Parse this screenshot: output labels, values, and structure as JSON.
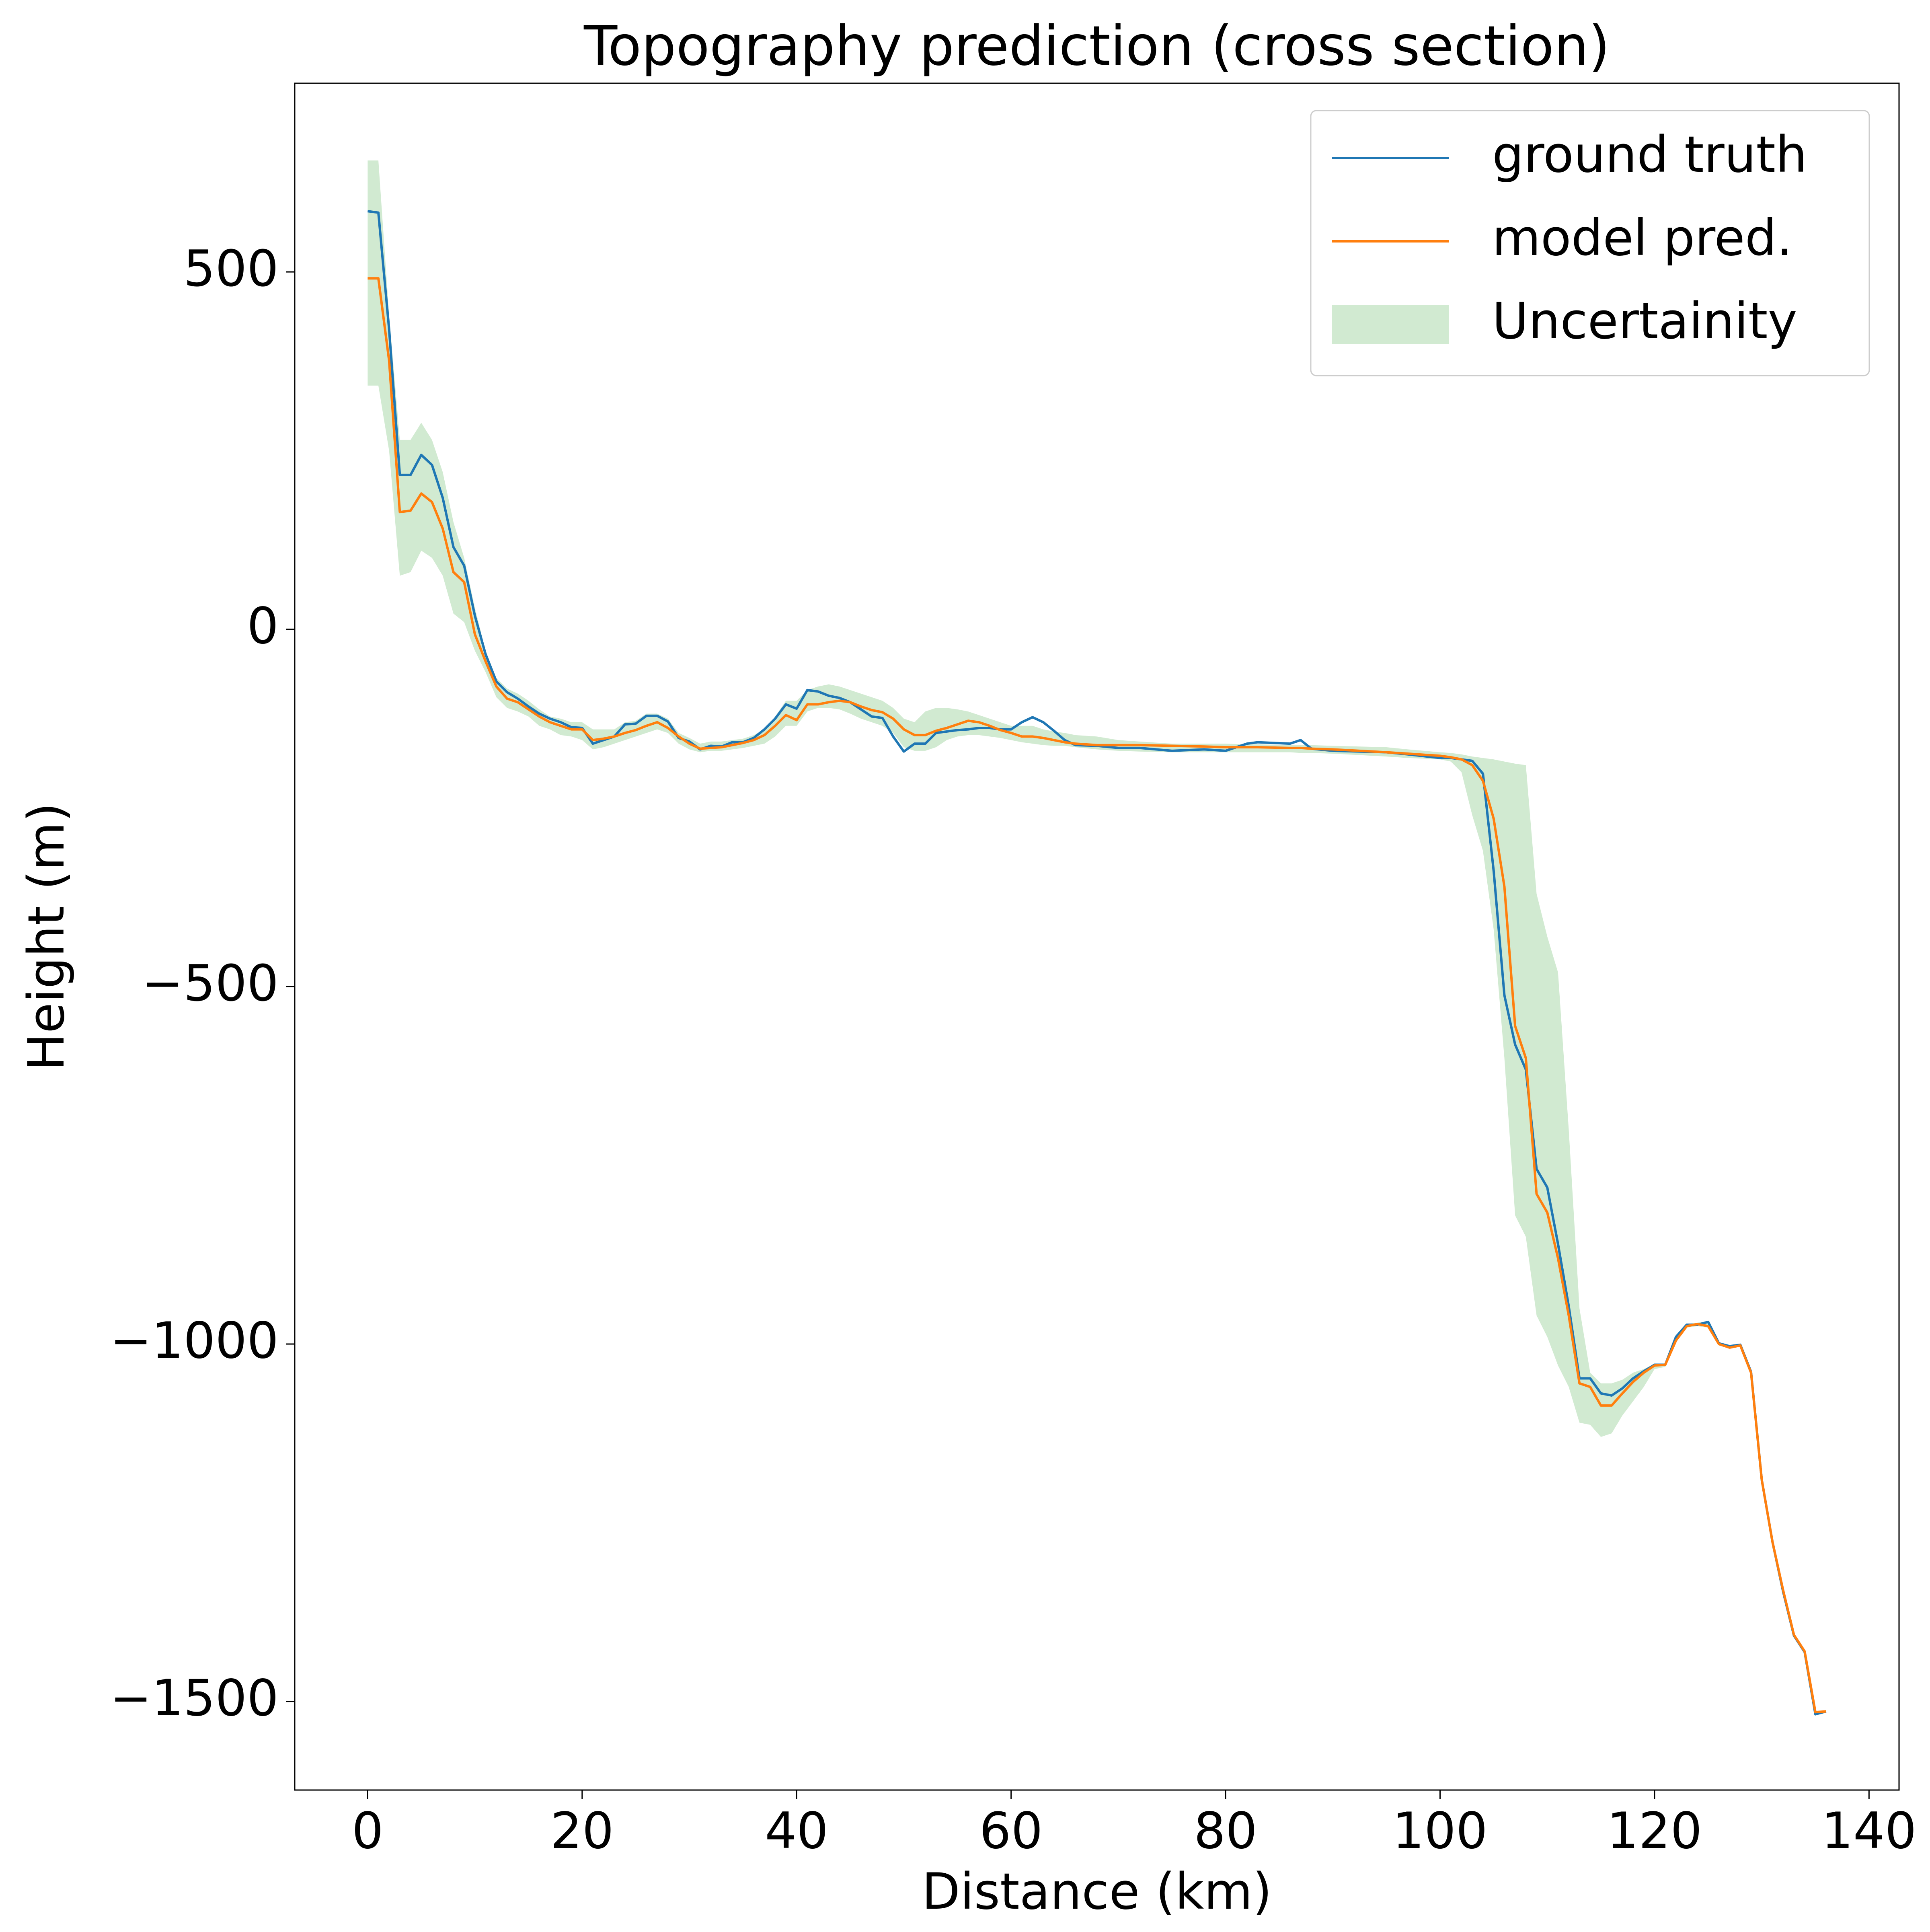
{
  "chart_data": {
    "type": "line",
    "title": "Topography prediction (cross section)",
    "xlabel": "Distance (km)",
    "ylabel": "Height (m)",
    "xlim": [
      -6.8,
      142.8
    ],
    "ylim": [
      -1624,
      764
    ],
    "xticks": [
      0,
      20,
      40,
      60,
      80,
      100,
      120,
      140
    ],
    "yticks": [
      {
        "value": -1500,
        "label": "−1500"
      },
      {
        "value": -1000,
        "label": "−1000"
      },
      {
        "value": -500,
        "label": "−500"
      },
      0,
      500
    ],
    "legend": "upper right",
    "x": [
      0,
      1,
      2,
      3,
      4,
      5,
      6,
      7,
      8,
      9,
      10,
      11,
      12,
      13,
      14,
      15,
      16,
      17,
      18,
      19,
      20,
      21,
      22,
      23,
      24,
      25,
      26,
      27,
      28,
      29,
      30,
      31,
      32,
      33,
      34,
      35,
      36,
      37,
      38,
      39,
      40,
      41,
      42,
      43,
      44,
      45,
      46,
      47,
      48,
      49,
      50,
      51,
      52,
      53,
      54,
      55,
      56,
      57,
      58,
      59,
      60,
      61,
      62,
      63,
      64,
      65,
      66,
      68,
      70,
      72,
      75,
      78,
      80,
      82,
      83,
      86,
      87,
      88,
      90,
      95,
      97,
      100,
      101,
      102,
      103,
      104,
      105,
      106,
      107,
      108,
      109,
      110,
      111,
      112,
      113,
      114,
      115,
      116,
      117,
      118,
      119,
      120,
      121,
      122,
      123,
      124,
      125,
      126,
      127,
      128,
      129,
      130,
      131,
      132,
      133,
      134,
      135,
      136
    ],
    "series": [
      {
        "name": "ground truth",
        "color": "#1f77b4",
        "values": [
          585,
          583,
          420,
          216,
          216,
          244,
          230,
          184,
          115,
          89,
          19,
          -35,
          -73,
          -88,
          -97,
          -108,
          -118,
          -125,
          -130,
          -137,
          -138,
          -160,
          -155,
          -150,
          -133,
          -132,
          -121,
          -121,
          -129,
          -152,
          -157,
          -168,
          -163,
          -164,
          -158,
          -158,
          -152,
          -140,
          -125,
          -105,
          -111,
          -85,
          -87,
          -93,
          -96,
          -102,
          -112,
          -122,
          -124,
          -150,
          -171,
          -160,
          -160,
          -145,
          -143,
          -141,
          -140,
          -138,
          -138,
          -140,
          -140,
          -130,
          -123,
          -130,
          -142,
          -155,
          -162,
          -163,
          -166,
          -166,
          -170,
          -168,
          -170,
          -160,
          -158,
          -160,
          -155,
          -167,
          -170,
          -172,
          -175,
          -180,
          -180,
          -182,
          -184,
          -202,
          -338,
          -512,
          -581,
          -616,
          -755,
          -781,
          -860,
          -947,
          -1048,
          -1048,
          -1069,
          -1072,
          -1062,
          -1048,
          -1038,
          -1029,
          -1029,
          -990,
          -973,
          -973,
          -969,
          -999,
          -1003,
          -1001,
          -1039,
          -1190,
          -1277,
          -1347,
          -1408,
          -1431,
          -1518,
          -1514
        ]
      },
      {
        "name": "model pred.",
        "color": "#ff7f0e",
        "values": [
          491,
          491,
          376,
          164,
          166,
          190,
          178,
          141,
          80,
          66,
          -7,
          -45,
          -80,
          -97,
          -102,
          -112,
          -122,
          -130,
          -135,
          -140,
          -140,
          -155,
          -153,
          -150,
          -145,
          -141,
          -135,
          -130,
          -138,
          -150,
          -160,
          -167,
          -166,
          -165,
          -162,
          -159,
          -155,
          -148,
          -135,
          -120,
          -127,
          -105,
          -105,
          -102,
          -100,
          -102,
          -108,
          -113,
          -116,
          -125,
          -140,
          -148,
          -148,
          -142,
          -138,
          -133,
          -128,
          -130,
          -135,
          -141,
          -145,
          -150,
          -150,
          -152,
          -155,
          -158,
          -160,
          -162,
          -162,
          -162,
          -163,
          -164,
          -165,
          -165,
          -165,
          -166,
          -166,
          -167,
          -168,
          -172,
          -174,
          -177,
          -179,
          -182,
          -190,
          -212,
          -265,
          -360,
          -555,
          -600,
          -790,
          -816,
          -880,
          -960,
          -1055,
          -1060,
          -1086,
          -1086,
          -1069,
          -1053,
          -1040,
          -1030,
          -1029,
          -995,
          -975,
          -972,
          -975,
          -1000,
          -1005,
          -1002,
          -1040,
          -1190,
          -1277,
          -1345,
          -1407,
          -1430,
          -1515,
          -1514
        ]
      }
    ],
    "band": {
      "name": "Uncertainity",
      "color": "#2ca02c",
      "upper": [
        656,
        656,
        440,
        265,
        265,
        289,
        265,
        220,
        150,
        100,
        30,
        -30,
        -68,
        -83,
        -90,
        -100,
        -112,
        -122,
        -125,
        -130,
        -130,
        -140,
        -140,
        -140,
        -130,
        -128,
        -118,
        -118,
        -125,
        -145,
        -152,
        -160,
        -157,
        -157,
        -155,
        -153,
        -148,
        -140,
        -122,
        -100,
        -100,
        -85,
        -80,
        -77,
        -80,
        -85,
        -90,
        -95,
        -100,
        -110,
        -125,
        -130,
        -115,
        -110,
        -110,
        -112,
        -115,
        -120,
        -125,
        -130,
        -135,
        -135,
        -135,
        -140,
        -143,
        -145,
        -148,
        -150,
        -155,
        -157,
        -160,
        -160,
        -160,
        -161,
        -161,
        -162,
        -162,
        -162,
        -163,
        -165,
        -168,
        -172,
        -173,
        -175,
        -178,
        -180,
        -182,
        -185,
        -188,
        -190,
        -370,
        -430,
        -480,
        -700,
        -950,
        -1040,
        -1055,
        -1055,
        -1050,
        -1040,
        -1035,
        -1028,
        -1027,
        -990,
        -972,
        -970,
        -968,
        -998,
        -1002,
        -1000,
        -1038,
        -1188,
        -1275,
        -1344,
        -1406,
        -1429,
        -1514,
        -1512
      ],
      "lower": [
        341,
        341,
        250,
        75,
        80,
        110,
        100,
        75,
        22,
        10,
        -30,
        -60,
        -95,
        -110,
        -115,
        -122,
        -135,
        -140,
        -148,
        -150,
        -155,
        -168,
        -165,
        -160,
        -155,
        -150,
        -145,
        -140,
        -145,
        -160,
        -168,
        -172,
        -170,
        -170,
        -168,
        -166,
        -163,
        -160,
        -150,
        -135,
        -135,
        -115,
        -110,
        -110,
        -112,
        -118,
        -125,
        -130,
        -135,
        -145,
        -165,
        -170,
        -170,
        -165,
        -155,
        -150,
        -148,
        -148,
        -150,
        -152,
        -155,
        -158,
        -160,
        -162,
        -163,
        -163,
        -165,
        -168,
        -170,
        -171,
        -172,
        -172,
        -172,
        -172,
        -172,
        -172,
        -173,
        -173,
        -174,
        -178,
        -180,
        -182,
        -185,
        -200,
        -260,
        -310,
        -420,
        -600,
        -820,
        -850,
        -960,
        -990,
        -1030,
        -1060,
        -1110,
        -1113,
        -1130,
        -1125,
        -1100,
        -1080,
        -1060,
        -1035,
        -1032,
        -997,
        -977,
        -975,
        -977,
        -1002,
        -1006,
        -1004,
        -1042,
        -1192,
        -1279,
        -1348,
        -1409,
        -1432,
        -1518,
        -1516
      ]
    }
  }
}
